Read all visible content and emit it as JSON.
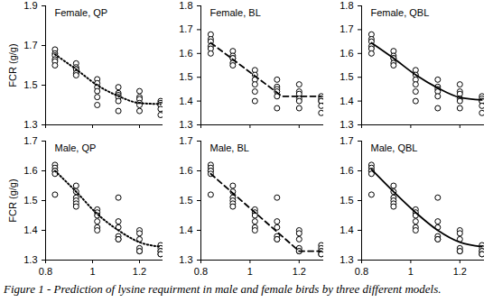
{
  "caption": "Figure 1 - Prediction of lysine requirment in male and female birds by three different models.",
  "chart_data": [
    {
      "type": "scatter",
      "title": "Female, QP",
      "ylabel": "FCR (g/g)",
      "color": "#000000",
      "marker": "open_circle",
      "tick_labels": "y",
      "x": [
        0.84,
        0.84,
        0.84,
        0.84,
        0.84,
        0.84,
        0.93,
        0.93,
        0.93,
        0.93,
        0.93,
        0.93,
        1.02,
        1.02,
        1.02,
        1.02,
        1.02,
        1.02,
        1.11,
        1.11,
        1.11,
        1.11,
        1.11,
        1.11,
        1.2,
        1.2,
        1.2,
        1.2,
        1.2,
        1.2,
        1.29,
        1.29,
        1.29,
        1.29,
        1.29,
        1.29
      ],
      "values": [
        1.68,
        1.66,
        1.65,
        1.63,
        1.62,
        1.6,
        1.61,
        1.59,
        1.58,
        1.58,
        1.56,
        1.55,
        1.53,
        1.51,
        1.49,
        1.47,
        1.44,
        1.4,
        1.49,
        1.46,
        1.45,
        1.44,
        1.42,
        1.37,
        1.47,
        1.44,
        1.43,
        1.41,
        1.4,
        1.37,
        1.42,
        1.41,
        1.4,
        1.4,
        1.38,
        1.35
      ],
      "fit": {
        "type": "line",
        "line_style": "dotted",
        "x": [
          0.84,
          0.93,
          1.02,
          1.11,
          1.2,
          1.29
        ],
        "values": [
          1.655,
          1.58,
          1.5,
          1.445,
          1.41,
          1.405
        ]
      },
      "xlim": [
        0.8,
        1.3
      ],
      "xticks": [
        0.8,
        1,
        1.2
      ],
      "ylim": [
        1.3,
        1.9
      ],
      "yticks": [
        1.3,
        1.5,
        1.7,
        1.9
      ]
    },
    {
      "type": "scatter",
      "title": "Female, BL",
      "color": "#000000",
      "marker": "open_circle",
      "tick_labels": "y",
      "x": [
        0.84,
        0.84,
        0.84,
        0.84,
        0.84,
        0.84,
        0.93,
        0.93,
        0.93,
        0.93,
        0.93,
        0.93,
        1.02,
        1.02,
        1.02,
        1.02,
        1.02,
        1.02,
        1.11,
        1.11,
        1.11,
        1.11,
        1.11,
        1.11,
        1.2,
        1.2,
        1.2,
        1.2,
        1.2,
        1.2,
        1.29,
        1.29,
        1.29,
        1.29,
        1.29,
        1.29
      ],
      "values": [
        1.68,
        1.66,
        1.65,
        1.63,
        1.62,
        1.6,
        1.61,
        1.59,
        1.58,
        1.58,
        1.56,
        1.55,
        1.53,
        1.51,
        1.49,
        1.47,
        1.44,
        1.4,
        1.49,
        1.46,
        1.45,
        1.44,
        1.42,
        1.37,
        1.47,
        1.44,
        1.43,
        1.41,
        1.4,
        1.37,
        1.42,
        1.41,
        1.4,
        1.4,
        1.38,
        1.35
      ],
      "fit": {
        "type": "line",
        "line_style": "dashed",
        "x": [
          0.84,
          1.13,
          1.29
        ],
        "values": [
          1.645,
          1.42,
          1.42
        ]
      },
      "xlim": [
        0.8,
        1.3
      ],
      "xticks": [
        0.8,
        1,
        1.2
      ],
      "ylim": [
        1.3,
        1.8
      ],
      "yticks": [
        1.3,
        1.4,
        1.5,
        1.6,
        1.7,
        1.8
      ]
    },
    {
      "type": "scatter",
      "title": "Female, QBL",
      "color": "#000000",
      "marker": "open_circle",
      "tick_labels": "y",
      "x": [
        0.84,
        0.84,
        0.84,
        0.84,
        0.84,
        0.84,
        0.93,
        0.93,
        0.93,
        0.93,
        0.93,
        0.93,
        1.02,
        1.02,
        1.02,
        1.02,
        1.02,
        1.02,
        1.11,
        1.11,
        1.11,
        1.11,
        1.11,
        1.11,
        1.2,
        1.2,
        1.2,
        1.2,
        1.2,
        1.2,
        1.29,
        1.29,
        1.29,
        1.29,
        1.29,
        1.29
      ],
      "values": [
        1.68,
        1.66,
        1.65,
        1.63,
        1.62,
        1.6,
        1.61,
        1.59,
        1.58,
        1.58,
        1.56,
        1.55,
        1.53,
        1.51,
        1.49,
        1.47,
        1.44,
        1.4,
        1.49,
        1.46,
        1.45,
        1.44,
        1.42,
        1.37,
        1.47,
        1.44,
        1.43,
        1.41,
        1.4,
        1.37,
        1.42,
        1.41,
        1.4,
        1.4,
        1.38,
        1.35
      ],
      "fit": {
        "type": "line",
        "line_style": "solid",
        "x": [
          0.84,
          0.93,
          1.02,
          1.11,
          1.2,
          1.29
        ],
        "values": [
          1.645,
          1.58,
          1.51,
          1.455,
          1.415,
          1.405
        ]
      },
      "xlim": [
        0.8,
        1.3
      ],
      "xticks": [
        0.8,
        1,
        1.2
      ],
      "ylim": [
        1.3,
        1.8
      ],
      "yticks": [
        1.3,
        1.4,
        1.5,
        1.6,
        1.7,
        1.8
      ]
    },
    {
      "type": "scatter",
      "title": "Male, QP",
      "ylabel": "FCR (g/g)",
      "color": "#000000",
      "marker": "open_circle",
      "x": [
        0.84,
        0.84,
        0.84,
        0.84,
        0.84,
        0.84,
        0.93,
        0.93,
        0.93,
        0.93,
        0.93,
        0.93,
        1.02,
        1.02,
        1.02,
        1.02,
        1.02,
        1.02,
        1.11,
        1.11,
        1.11,
        1.11,
        1.11,
        1.11,
        1.2,
        1.2,
        1.2,
        1.2,
        1.2,
        1.2,
        1.29,
        1.29,
        1.29,
        1.29,
        1.29,
        1.29
      ],
      "values": [
        1.62,
        1.61,
        1.6,
        1.6,
        1.59,
        1.52,
        1.55,
        1.53,
        1.51,
        1.5,
        1.49,
        1.48,
        1.47,
        1.46,
        1.45,
        1.43,
        1.41,
        1.4,
        1.51,
        1.43,
        1.41,
        1.38,
        1.37,
        1.37,
        1.4,
        1.39,
        1.37,
        1.34,
        1.33,
        1.33,
        1.35,
        1.34,
        1.33,
        1.33,
        1.32,
        1.32
      ],
      "fit": {
        "type": "line",
        "line_style": "dotted",
        "x": [
          0.84,
          0.93,
          1.02,
          1.11,
          1.2,
          1.29
        ],
        "values": [
          1.6,
          1.53,
          1.455,
          1.4,
          1.36,
          1.345
        ]
      },
      "xlim": [
        0.8,
        1.3
      ],
      "xticks": [
        0.8,
        1,
        1.2
      ],
      "ylim": [
        1.3,
        1.7
      ],
      "yticks": [
        1.3,
        1.4,
        1.5,
        1.6,
        1.7
      ]
    },
    {
      "type": "scatter",
      "title": "Male, BL",
      "color": "#000000",
      "marker": "open_circle",
      "x": [
        0.84,
        0.84,
        0.84,
        0.84,
        0.84,
        0.84,
        0.93,
        0.93,
        0.93,
        0.93,
        0.93,
        0.93,
        1.02,
        1.02,
        1.02,
        1.02,
        1.02,
        1.02,
        1.11,
        1.11,
        1.11,
        1.11,
        1.11,
        1.11,
        1.2,
        1.2,
        1.2,
        1.2,
        1.2,
        1.2,
        1.29,
        1.29,
        1.29,
        1.29,
        1.29,
        1.29
      ],
      "values": [
        1.62,
        1.61,
        1.6,
        1.6,
        1.59,
        1.52,
        1.55,
        1.53,
        1.51,
        1.5,
        1.49,
        1.48,
        1.47,
        1.46,
        1.45,
        1.43,
        1.41,
        1.4,
        1.51,
        1.43,
        1.41,
        1.38,
        1.37,
        1.37,
        1.4,
        1.39,
        1.37,
        1.34,
        1.33,
        1.33,
        1.35,
        1.34,
        1.33,
        1.33,
        1.32,
        1.32
      ],
      "fit": {
        "type": "line",
        "line_style": "dashed",
        "x": [
          0.84,
          1.2,
          1.29
        ],
        "values": [
          1.59,
          1.33,
          1.33
        ]
      },
      "xlim": [
        0.8,
        1.3
      ],
      "xticks": [
        0.8,
        1,
        1.2
      ],
      "ylim": [
        1.3,
        1.7
      ],
      "yticks": [
        1.3,
        1.4,
        1.5,
        1.6,
        1.7
      ]
    },
    {
      "type": "scatter",
      "title": "Male, QBL",
      "color": "#000000",
      "marker": "open_circle",
      "x": [
        0.84,
        0.84,
        0.84,
        0.84,
        0.84,
        0.84,
        0.93,
        0.93,
        0.93,
        0.93,
        0.93,
        0.93,
        1.02,
        1.02,
        1.02,
        1.02,
        1.02,
        1.02,
        1.11,
        1.11,
        1.11,
        1.11,
        1.11,
        1.11,
        1.2,
        1.2,
        1.2,
        1.2,
        1.2,
        1.2,
        1.29,
        1.29,
        1.29,
        1.29,
        1.29,
        1.29
      ],
      "values": [
        1.62,
        1.61,
        1.6,
        1.6,
        1.59,
        1.52,
        1.55,
        1.53,
        1.51,
        1.5,
        1.49,
        1.48,
        1.47,
        1.46,
        1.45,
        1.43,
        1.41,
        1.4,
        1.51,
        1.43,
        1.41,
        1.38,
        1.37,
        1.37,
        1.4,
        1.39,
        1.37,
        1.34,
        1.33,
        1.33,
        1.35,
        1.34,
        1.33,
        1.33,
        1.32,
        1.32
      ],
      "fit": {
        "type": "line",
        "line_style": "solid",
        "x": [
          0.84,
          0.93,
          1.02,
          1.11,
          1.2,
          1.29
        ],
        "values": [
          1.605,
          1.53,
          1.46,
          1.4,
          1.36,
          1.345
        ]
      },
      "xlim": [
        0.8,
        1.3
      ],
      "xticks": [
        0.8,
        1,
        1.2
      ],
      "ylim": [
        1.3,
        1.7
      ],
      "yticks": [
        1.3,
        1.4,
        1.5,
        1.6,
        1.7
      ]
    }
  ]
}
